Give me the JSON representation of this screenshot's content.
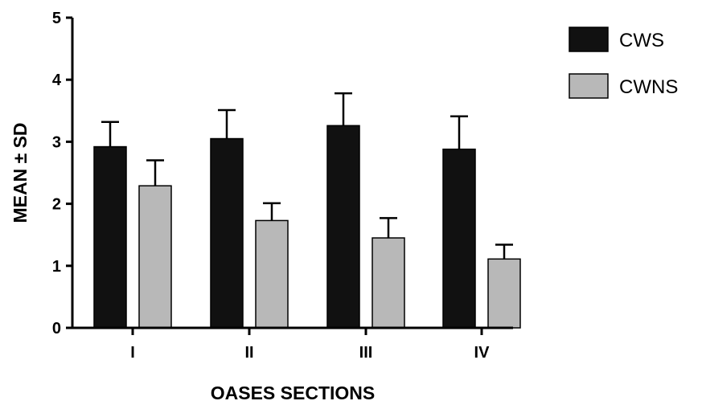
{
  "chart_data": {
    "type": "bar",
    "xlabel": "OASES SECTIONS",
    "ylabel": "MEAN ± SD",
    "ylim": [
      0,
      5
    ],
    "yticks": [
      0,
      1,
      2,
      3,
      4,
      5
    ],
    "categories": [
      "I",
      "II",
      "III",
      "IV"
    ],
    "series": [
      {
        "name": "CWS",
        "color": "#111111",
        "values": [
          2.92,
          3.05,
          3.26,
          2.88
        ],
        "sd": [
          0.4,
          0.46,
          0.52,
          0.53
        ]
      },
      {
        "name": "CWNS",
        "color": "#b8b8b8",
        "values": [
          2.29,
          1.73,
          1.45,
          1.11
        ],
        "sd": [
          0.41,
          0.28,
          0.32,
          0.23
        ]
      }
    ],
    "legend": "top-right",
    "grid": false
  }
}
